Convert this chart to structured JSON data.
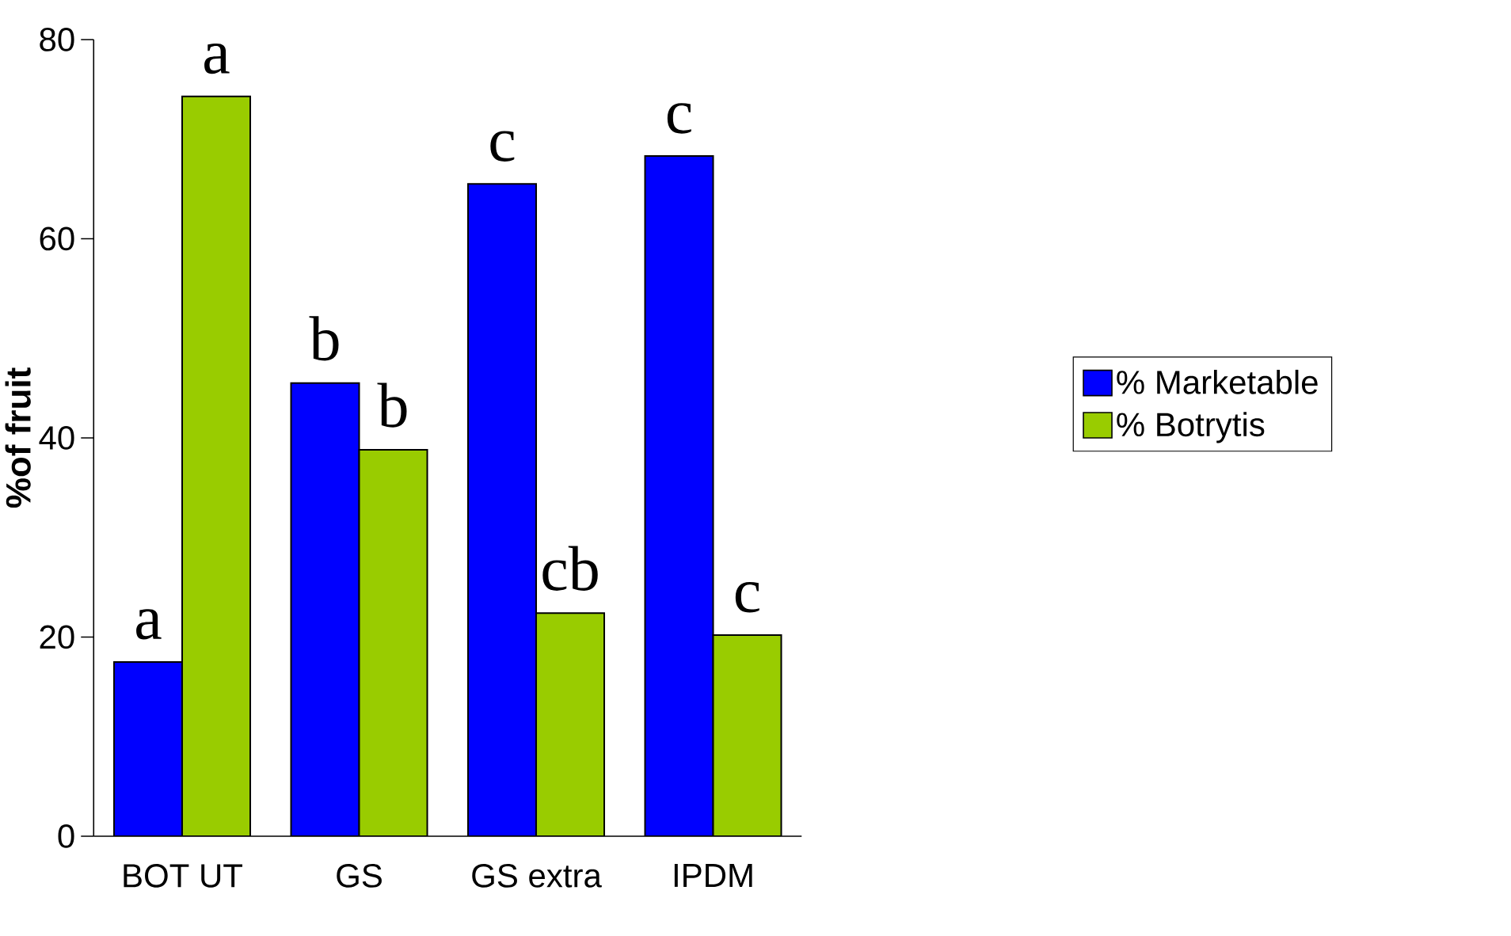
{
  "chart_data": {
    "type": "bar",
    "ylabel": "%of fruit",
    "categories": [
      "BOT UT",
      "GS",
      "GS extra",
      "IPDM"
    ],
    "series": [
      {
        "name": "% Marketable",
        "color": "#0000ff",
        "values": [
          17.5,
          45.5,
          65.5,
          68.3
        ],
        "value_labels": [
          "a",
          "b",
          "c",
          "c"
        ]
      },
      {
        "name": "% Botrytis",
        "color": "#99cc00",
        "values": [
          74.3,
          38.8,
          22.4,
          20.2
        ],
        "value_labels": [
          "a",
          "b",
          "cb",
          "c"
        ]
      }
    ],
    "ylim": [
      0,
      80
    ],
    "yticks": [
      0,
      20,
      40,
      60,
      80
    ],
    "grid": false,
    "legend": "right"
  }
}
